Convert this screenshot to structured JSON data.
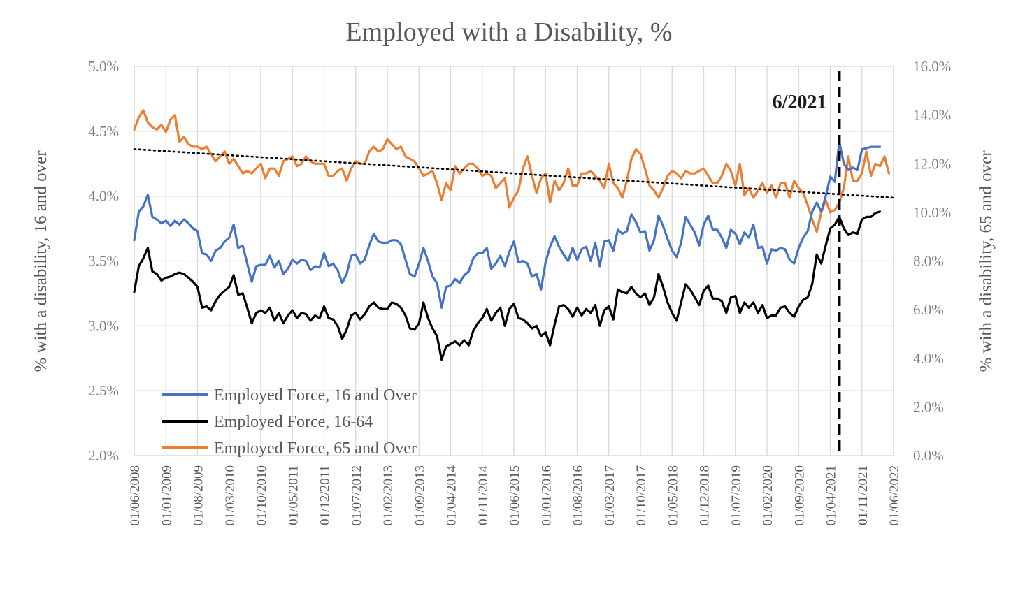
{
  "chart_data": {
    "type": "line",
    "title": "Employed with a Disability, %",
    "ylabel_left": "% with a disability, 16 and over",
    "ylabel_right": "% with a disability, 65 and over",
    "ylim_left": [
      2.0,
      5.0
    ],
    "ylim_right": [
      0.0,
      16.0
    ],
    "yticks_left": [
      "2.0%",
      "2.5%",
      "3.0%",
      "3.5%",
      "4.0%",
      "4.5%",
      "5.0%"
    ],
    "yticks_right": [
      "0.0%",
      "2.0%",
      "4.0%",
      "6.0%",
      "8.0%",
      "10.0%",
      "12.0%",
      "14.0%",
      "16.0%"
    ],
    "x_start": "2008-06",
    "x_end": "2022-06",
    "xticks": [
      "01/06/2008",
      "01/01/2009",
      "01/08/2009",
      "01/03/2010",
      "01/10/2010",
      "01/05/2011",
      "01/12/2011",
      "01/07/2012",
      "01/02/2013",
      "01/09/2013",
      "01/04/2014",
      "01/11/2014",
      "01/06/2015",
      "01/01/2016",
      "01/08/2016",
      "01/03/2017",
      "01/10/2017",
      "01/05/2018",
      "01/12/2018",
      "01/07/2019",
      "01/02/2020",
      "01/09/2020",
      "01/04/2021",
      "01/11/2021",
      "01/06/2022"
    ],
    "grid": true,
    "legend_position": "bottom-left",
    "annotation": {
      "label": "6/2021",
      "x": "2021-06",
      "style": "dashed vertical line"
    },
    "trendline": {
      "series": "Employed Force, 65 and Over",
      "style": "dotted",
      "start": 12.6,
      "end": 10.6,
      "axis": "right"
    },
    "series": [
      {
        "name": "Employed Force, 16 and Over",
        "axis": "left",
        "color": "#4472c4",
        "monthly_values_from_2008_06": [
          3.66,
          3.88,
          3.92,
          4.01,
          3.84,
          3.82,
          3.79,
          3.81,
          3.77,
          3.81,
          3.78,
          3.82,
          3.79,
          3.75,
          3.73,
          3.56,
          3.55,
          3.5,
          3.58,
          3.6,
          3.65,
          3.68,
          3.78,
          3.6,
          3.62,
          3.48,
          3.34,
          3.46,
          3.47,
          3.47,
          3.54,
          3.45,
          3.5,
          3.4,
          3.44,
          3.51,
          3.48,
          3.51,
          3.5,
          3.43,
          3.46,
          3.45,
          3.56,
          3.46,
          3.48,
          3.43,
          3.33,
          3.4,
          3.54,
          3.55,
          3.48,
          3.51,
          3.62,
          3.71,
          3.65,
          3.64,
          3.64,
          3.66,
          3.66,
          3.63,
          3.51,
          3.4,
          3.38,
          3.48,
          3.6,
          3.5,
          3.38,
          3.33,
          3.14,
          3.3,
          3.31,
          3.36,
          3.33,
          3.39,
          3.42,
          3.52,
          3.56,
          3.56,
          3.6,
          3.44,
          3.48,
          3.54,
          3.46,
          3.57,
          3.65,
          3.49,
          3.5,
          3.48,
          3.38,
          3.4,
          3.28,
          3.49,
          3.61,
          3.69,
          3.61,
          3.55,
          3.5,
          3.6,
          3.51,
          3.59,
          3.61,
          3.5,
          3.64,
          3.46,
          3.65,
          3.66,
          3.58,
          3.74,
          3.71,
          3.73,
          3.86,
          3.8,
          3.72,
          3.73,
          3.58,
          3.66,
          3.85,
          3.77,
          3.67,
          3.58,
          3.53,
          3.64,
          3.84,
          3.78,
          3.72,
          3.62,
          3.78,
          3.85,
          3.74,
          3.74,
          3.68,
          3.6,
          3.74,
          3.71,
          3.63,
          3.72,
          3.68,
          3.78,
          3.6,
          3.61,
          3.48,
          3.59,
          3.58,
          3.6,
          3.59,
          3.51,
          3.48,
          3.6,
          3.68,
          3.73,
          3.88,
          3.95,
          3.88,
          4.0,
          4.15,
          4.11,
          4.42,
          4.25,
          4.2,
          4.22,
          4.2,
          4.36,
          4.37,
          4.38,
          4.38,
          4.38
        ]
      },
      {
        "name": "Employed Force, 16-64",
        "axis": "left",
        "color": "#000000",
        "monthly_values_from_2008_06": [
          3.26,
          3.46,
          3.52,
          3.6,
          3.42,
          3.4,
          3.35,
          3.37,
          3.38,
          3.4,
          3.41,
          3.4,
          3.37,
          3.34,
          3.3,
          3.14,
          3.15,
          3.12,
          3.19,
          3.24,
          3.27,
          3.3,
          3.39,
          3.24,
          3.25,
          3.14,
          3.02,
          3.1,
          3.12,
          3.1,
          3.14,
          3.04,
          3.1,
          3.02,
          3.08,
          3.12,
          3.06,
          3.1,
          3.09,
          3.04,
          3.08,
          3.06,
          3.15,
          3.06,
          3.05,
          3.0,
          2.9,
          2.97,
          3.08,
          3.1,
          3.05,
          3.09,
          3.15,
          3.18,
          3.14,
          3.13,
          3.13,
          3.18,
          3.17,
          3.14,
          3.08,
          2.98,
          2.97,
          3.02,
          3.18,
          3.06,
          2.98,
          2.92,
          2.74,
          2.84,
          2.86,
          2.88,
          2.85,
          2.89,
          2.85,
          2.96,
          3.02,
          3.06,
          3.13,
          3.04,
          3.1,
          3.14,
          3.0,
          3.13,
          3.17,
          3.06,
          3.05,
          3.02,
          2.98,
          3.0,
          2.92,
          2.95,
          2.85,
          3.01,
          3.15,
          3.16,
          3.13,
          3.07,
          3.14,
          3.08,
          3.13,
          3.1,
          3.16,
          3.0,
          3.12,
          3.15,
          3.05,
          3.28,
          3.26,
          3.25,
          3.3,
          3.25,
          3.22,
          3.25,
          3.16,
          3.22,
          3.4,
          3.3,
          3.18,
          3.1,
          3.04,
          3.18,
          3.32,
          3.28,
          3.22,
          3.16,
          3.27,
          3.31,
          3.21,
          3.21,
          3.19,
          3.1,
          3.22,
          3.23,
          3.1,
          3.18,
          3.14,
          3.18,
          3.1,
          3.16,
          3.06,
          3.08,
          3.08,
          3.14,
          3.15,
          3.1,
          3.07,
          3.15,
          3.2,
          3.22,
          3.32,
          3.55,
          3.48,
          3.62,
          3.75,
          3.78,
          3.84,
          3.75,
          3.7,
          3.72,
          3.71,
          3.82,
          3.84,
          3.84,
          3.87,
          3.88
        ]
      },
      {
        "name": "Employed Force, 65 and Over",
        "axis": "right",
        "color": "#ed7d31",
        "monthly_values_from_2008_06": [
          13.4,
          13.9,
          14.2,
          13.7,
          13.5,
          13.4,
          13.6,
          13.3,
          13.8,
          14.0,
          12.9,
          13.1,
          12.8,
          12.7,
          12.7,
          12.6,
          12.7,
          12.4,
          12.1,
          12.3,
          12.5,
          12.0,
          12.2,
          11.9,
          11.6,
          11.7,
          11.6,
          11.8,
          12.0,
          11.4,
          11.8,
          11.8,
          11.5,
          12.1,
          12.2,
          12.3,
          11.9,
          12.0,
          12.3,
          12.1,
          12.0,
          12.0,
          12.0,
          11.5,
          11.5,
          11.7,
          11.8,
          11.3,
          11.8,
          12.1,
          12.0,
          12.0,
          12.5,
          12.7,
          12.5,
          12.6,
          13.0,
          12.8,
          12.6,
          12.7,
          12.3,
          12.2,
          12.1,
          11.8,
          11.5,
          11.6,
          11.7,
          11.2,
          10.5,
          11.2,
          10.9,
          11.9,
          11.6,
          11.8,
          12.0,
          12.0,
          11.8,
          11.5,
          11.6,
          11.5,
          11.0,
          11.2,
          11.4,
          10.2,
          10.6,
          10.9,
          11.8,
          12.3,
          11.5,
          10.8,
          11.4,
          11.6,
          10.4,
          11.3,
          10.9,
          11.2,
          11.8,
          11.1,
          11.1,
          11.6,
          11.6,
          11.7,
          11.5,
          11.3,
          11.0,
          12.0,
          11.2,
          11.0,
          10.6,
          11.3,
          12.2,
          12.6,
          12.4,
          11.8,
          11.1,
          10.9,
          10.6,
          11.0,
          11.5,
          11.7,
          11.6,
          11.4,
          11.7,
          11.6,
          11.6,
          11.7,
          11.8,
          11.5,
          11.2,
          11.2,
          11.5,
          12.0,
          11.7,
          11.1,
          12.0,
          10.7,
          11.0,
          10.6,
          10.9,
          11.2,
          10.8,
          11.1,
          10.6,
          11.2,
          11.2,
          10.6,
          11.3,
          11.0,
          10.8,
          10.3,
          9.7,
          9.2,
          10.0,
          10.5,
          10.0,
          10.1,
          10.4,
          11.0,
          12.3,
          11.3,
          11.3,
          11.6,
          12.5,
          11.5,
          12.0,
          11.9,
          12.3,
          11.6
        ]
      }
    ]
  }
}
